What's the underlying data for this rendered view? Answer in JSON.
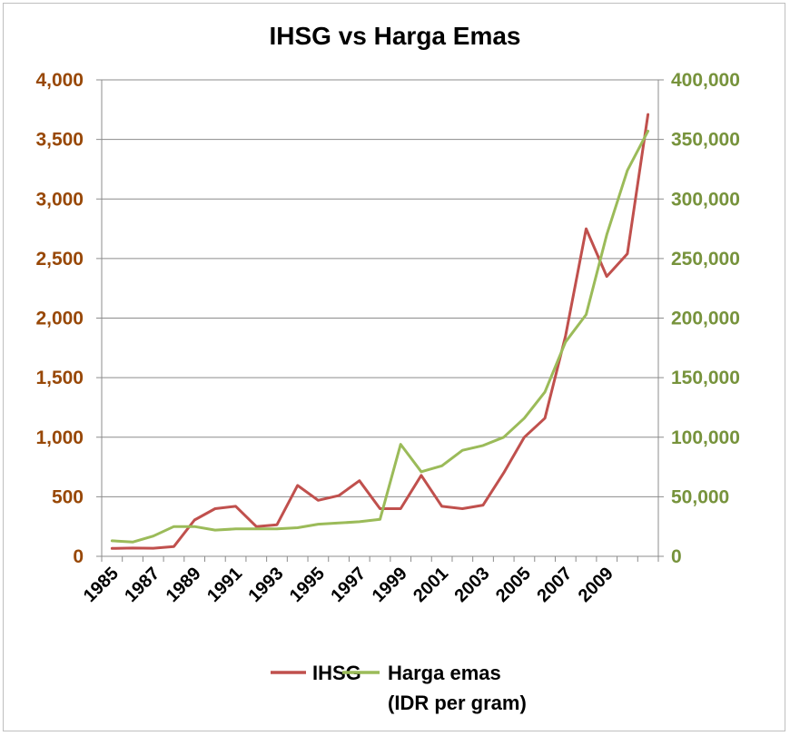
{
  "chart_data": {
    "type": "line",
    "title": "IHSG vs Harga Emas",
    "x": [
      1985,
      1986,
      1987,
      1988,
      1989,
      1990,
      1991,
      1992,
      1993,
      1994,
      1995,
      1996,
      1997,
      1998,
      1999,
      2000,
      2001,
      2002,
      2003,
      2004,
      2005,
      2006,
      2007,
      2008,
      2009,
      2010,
      2011
    ],
    "x_tick_labels": [
      "1985",
      "1987",
      "1989",
      "1991",
      "1993",
      "1995",
      "1997",
      "1999",
      "2001",
      "2003",
      "2005",
      "2007",
      "2009"
    ],
    "y_left": {
      "lim": [
        0,
        4000
      ],
      "ticks": [
        "0",
        "500",
        "1,000",
        "1,500",
        "2,000",
        "2,500",
        "3,000",
        "3,500",
        "4,000"
      ],
      "color": "#984807"
    },
    "y_right": {
      "lim": [
        0,
        400000
      ],
      "ticks": [
        "0",
        "50,000",
        "100,000",
        "150,000",
        "200,000",
        "250,000",
        "300,000",
        "350,000",
        "400,000"
      ],
      "color": "#77933c"
    },
    "grid": true,
    "legend_position": "bottom",
    "series": [
      {
        "name": "IHSG",
        "axis": "left",
        "color": "#c0504d",
        "values": [
          66,
          69,
          68,
          82,
          305,
          400,
          420,
          250,
          265,
          595,
          470,
          510,
          635,
          400,
          400,
          680,
          420,
          400,
          430,
          700,
          1000,
          1160,
          1850,
          2750,
          2350,
          2540,
          3710
        ]
      },
      {
        "name": "Harga emas",
        "name_line2": "(IDR per gram)",
        "axis": "right",
        "color": "#9bbb59",
        "values": [
          13000,
          12000,
          17000,
          25000,
          25000,
          22000,
          23000,
          23000,
          23000,
          24000,
          27000,
          28000,
          29000,
          31000,
          94000,
          71000,
          76000,
          89000,
          93000,
          100000,
          116000,
          138000,
          180000,
          203000,
          270000,
          324000,
          357000
        ]
      }
    ]
  }
}
